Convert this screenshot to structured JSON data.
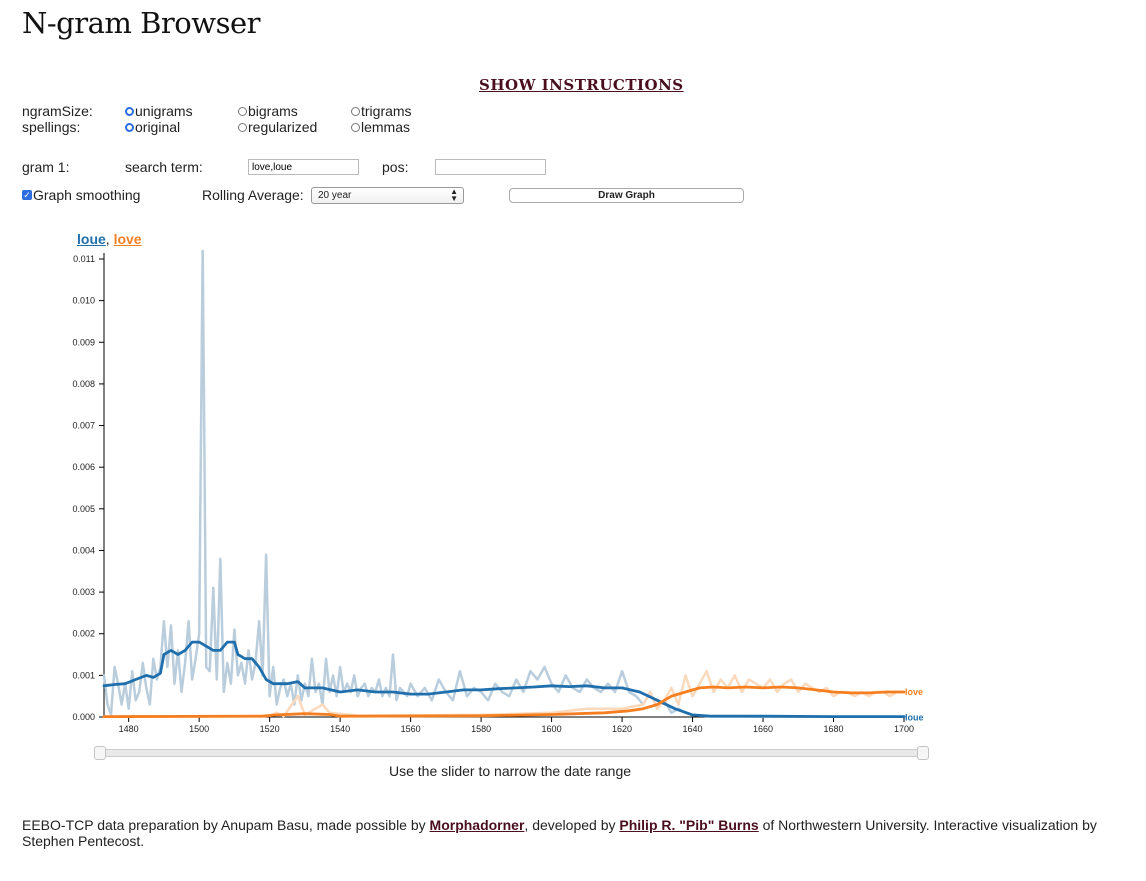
{
  "page": {
    "title": "N-gram Browser",
    "show_instructions": "SHOW INSTRUCTIONS"
  },
  "form": {
    "ngram_label": "ngramSize:",
    "spellings_label": "spellings:",
    "ngram_options": [
      "unigrams",
      "bigrams",
      "trigrams"
    ],
    "ngram_selected": "unigrams",
    "spelling_options": [
      "original",
      "regularized",
      "lemmas"
    ],
    "spelling_selected": "original",
    "gram_label": "gram 1:",
    "search_label": "search term:",
    "search_value": "love,loue",
    "pos_label": "pos:",
    "pos_value": "",
    "smoothing_label": "Graph smoothing",
    "smoothing_checked": true,
    "rolling_label": "Rolling Average:",
    "rolling_value": "20 year",
    "draw_button": "Draw Graph"
  },
  "legend": {
    "loue": "loue",
    "sep": ",",
    "love": "love"
  },
  "slider": {
    "note": "Use the slider to narrow the date range"
  },
  "footer": {
    "t1": "EEBO-TCP data preparation by Anupam Basu, made possible by ",
    "link1": "Morphadorner",
    "t2": ", developed by ",
    "link2": "Philip R. \"Pib\" Burns",
    "t3": " of Northwestern University. Interactive visualization by Stephen Pentecost."
  },
  "colors": {
    "loue": "#1f6fad",
    "love": "#f57f20",
    "loue_raw": "#b9cddc",
    "love_raw": "#fbd9bc",
    "link": "#4a0f1f"
  },
  "chart_data": {
    "type": "line",
    "xlim": [
      1473,
      1700
    ],
    "ylim": [
      0,
      0.011
    ],
    "x_ticks": [
      1480,
      1500,
      1520,
      1540,
      1560,
      1580,
      1600,
      1620,
      1640,
      1660,
      1680,
      1700
    ],
    "y_ticks": [
      "0.000",
      "0.001",
      "0.002",
      "0.003",
      "0.004",
      "0.005",
      "0.006",
      "0.007",
      "0.008",
      "0.009",
      "0.010",
      "0.011"
    ],
    "series": [
      {
        "name": "loue",
        "kind": "raw",
        "points": [
          [
            1473,
            0.001
          ],
          [
            1474,
            0.0003
          ],
          [
            1475,
            5e-05
          ],
          [
            1476,
            0.0012
          ],
          [
            1477,
            0.0008
          ],
          [
            1478,
            0.0003
          ],
          [
            1479,
            0.0008
          ],
          [
            1480,
            0.0002
          ],
          [
            1481,
            0.0011
          ],
          [
            1482,
            0.0004
          ],
          [
            1483,
            0.0006
          ],
          [
            1484,
            0.0013
          ],
          [
            1485,
            0.0007
          ],
          [
            1486,
            0.0003
          ],
          [
            1487,
            0.0014
          ],
          [
            1488,
            0.0009
          ],
          [
            1489,
            0.0012
          ],
          [
            1490,
            0.0023
          ],
          [
            1491,
            0.0012
          ],
          [
            1492,
            0.0022
          ],
          [
            1493,
            0.0008
          ],
          [
            1494,
            0.0016
          ],
          [
            1495,
            0.0006
          ],
          [
            1496,
            0.0013
          ],
          [
            1497,
            0.0023
          ],
          [
            1498,
            0.0009
          ],
          [
            1499,
            0.0014
          ],
          [
            1500,
            0.002
          ],
          [
            1501,
            0.0113
          ],
          [
            1502,
            0.0012
          ],
          [
            1503,
            0.0011
          ],
          [
            1504,
            0.0031
          ],
          [
            1505,
            0.0009
          ],
          [
            1506,
            0.0038
          ],
          [
            1507,
            0.0006
          ],
          [
            1508,
            0.0013
          ],
          [
            1509,
            0.0008
          ],
          [
            1510,
            0.0021
          ],
          [
            1511,
            0.001
          ],
          [
            1512,
            0.0013
          ],
          [
            1513,
            0.0008
          ],
          [
            1514,
            0.0016
          ],
          [
            1515,
            0.0009
          ],
          [
            1516,
            0.0013
          ],
          [
            1517,
            0.0023
          ],
          [
            1518,
            0.001
          ],
          [
            1519,
            0.0039
          ],
          [
            1520,
            0.0005
          ],
          [
            1521,
            0.0012
          ],
          [
            1522,
            0.0003
          ],
          [
            1523,
            0.0007
          ],
          [
            1524,
            0.0009
          ],
          [
            1525,
            0.0005
          ],
          [
            1526,
            0.0008
          ],
          [
            1527,
            0.0003
          ],
          [
            1528,
            0.001
          ],
          [
            1529,
            0.0004
          ],
          [
            1530,
            0.0008
          ],
          [
            1531,
            0.0005
          ],
          [
            1532,
            0.0014
          ],
          [
            1533,
            0.0006
          ],
          [
            1534,
            0.0008
          ],
          [
            1535,
            0.0003
          ],
          [
            1536,
            0.0014
          ],
          [
            1537,
            0.0006
          ],
          [
            1538,
            0.001
          ],
          [
            1539,
            0.0005
          ],
          [
            1540,
            0.0012
          ],
          [
            1541,
            0.0006
          ],
          [
            1542,
            0.0008
          ],
          [
            1543,
            0.0006
          ],
          [
            1544,
            0.001
          ],
          [
            1545,
            0.0005
          ],
          [
            1546,
            0.0007
          ],
          [
            1547,
            0.0008
          ],
          [
            1548,
            0.0005
          ],
          [
            1549,
            0.0007
          ],
          [
            1550,
            0.0006
          ],
          [
            1551,
            0.0009
          ],
          [
            1552,
            0.0005
          ],
          [
            1553,
            0.0007
          ],
          [
            1554,
            0.0005
          ],
          [
            1555,
            0.0015
          ],
          [
            1556,
            0.0004
          ],
          [
            1557,
            0.0007
          ],
          [
            1558,
            0.0006
          ],
          [
            1559,
            0.0005
          ],
          [
            1560,
            0.0008
          ],
          [
            1562,
            0.0005
          ],
          [
            1564,
            0.0007
          ],
          [
            1566,
            0.0004
          ],
          [
            1568,
            0.0009
          ],
          [
            1570,
            0.0006
          ],
          [
            1572,
            0.0004
          ],
          [
            1574,
            0.0011
          ],
          [
            1576,
            0.0005
          ],
          [
            1578,
            0.0007
          ],
          [
            1580,
            0.0006
          ],
          [
            1582,
            0.0004
          ],
          [
            1584,
            0.0008
          ],
          [
            1586,
            0.0006
          ],
          [
            1588,
            0.0005
          ],
          [
            1590,
            0.0009
          ],
          [
            1592,
            0.0006
          ],
          [
            1594,
            0.0011
          ],
          [
            1596,
            0.0009
          ],
          [
            1598,
            0.0012
          ],
          [
            1600,
            0.0008
          ],
          [
            1602,
            0.0006
          ],
          [
            1604,
            0.001
          ],
          [
            1606,
            0.0007
          ],
          [
            1608,
            0.0006
          ],
          [
            1610,
            0.0009
          ],
          [
            1612,
            0.0007
          ],
          [
            1614,
            0.0006
          ],
          [
            1616,
            0.0008
          ],
          [
            1618,
            0.0006
          ],
          [
            1620,
            0.0011
          ],
          [
            1622,
            0.0006
          ],
          [
            1624,
            0.0005
          ],
          [
            1626,
            0.0003
          ],
          [
            1628,
            0.0006
          ],
          [
            1630,
            0.0002
          ],
          [
            1632,
            0.0004
          ],
          [
            1634,
            0.0001
          ],
          [
            1636,
            0.0002
          ],
          [
            1638,
            0.0001
          ],
          [
            1640,
            5e-05
          ],
          [
            1645,
            2e-05
          ],
          [
            1660,
            1e-05
          ],
          [
            1700,
            1e-05
          ]
        ]
      },
      {
        "name": "love",
        "kind": "raw",
        "points": [
          [
            1473,
            1e-05
          ],
          [
            1520,
            3e-05
          ],
          [
            1522,
            0.0001
          ],
          [
            1524,
            2e-05
          ],
          [
            1528,
            0.0005
          ],
          [
            1530,
            5e-05
          ],
          [
            1535,
            0.0003
          ],
          [
            1537,
            0.0001
          ],
          [
            1545,
            3e-05
          ],
          [
            1580,
            5e-05
          ],
          [
            1600,
            0.0001
          ],
          [
            1610,
            0.0002
          ],
          [
            1620,
            0.0002
          ],
          [
            1626,
            0.0003
          ],
          [
            1628,
            0.0006
          ],
          [
            1630,
            0.0002
          ],
          [
            1632,
            0.0004
          ],
          [
            1634,
            0.0007
          ],
          [
            1636,
            0.0003
          ],
          [
            1638,
            0.001
          ],
          [
            1640,
            0.0005
          ],
          [
            1642,
            0.0008
          ],
          [
            1644,
            0.0011
          ],
          [
            1646,
            0.0006
          ],
          [
            1648,
            0.0009
          ],
          [
            1650,
            0.0007
          ],
          [
            1652,
            0.001
          ],
          [
            1654,
            0.0006
          ],
          [
            1656,
            0.0009
          ],
          [
            1658,
            0.0008
          ],
          [
            1660,
            0.0007
          ],
          [
            1662,
            0.0009
          ],
          [
            1664,
            0.0006
          ],
          [
            1666,
            0.0008
          ],
          [
            1668,
            0.0009
          ],
          [
            1670,
            0.0006
          ],
          [
            1672,
            0.0008
          ],
          [
            1674,
            0.0007
          ],
          [
            1676,
            0.0006
          ],
          [
            1678,
            0.0007
          ],
          [
            1680,
            0.0005
          ],
          [
            1682,
            0.0006
          ],
          [
            1684,
            0.0006
          ],
          [
            1686,
            0.0005
          ],
          [
            1688,
            0.0006
          ],
          [
            1690,
            0.0005
          ],
          [
            1692,
            0.0006
          ],
          [
            1694,
            0.0006
          ],
          [
            1696,
            0.0005
          ],
          [
            1698,
            0.0006
          ],
          [
            1700,
            0.0006
          ]
        ]
      },
      {
        "name": "loue",
        "kind": "smoothed",
        "points": [
          [
            1473,
            0.00075
          ],
          [
            1476,
            0.00078
          ],
          [
            1479,
            0.0008
          ],
          [
            1482,
            0.0009
          ],
          [
            1485,
            0.001
          ],
          [
            1487,
            0.00095
          ],
          [
            1489,
            0.00105
          ],
          [
            1490,
            0.0015
          ],
          [
            1492,
            0.0016
          ],
          [
            1494,
            0.0015
          ],
          [
            1496,
            0.0016
          ],
          [
            1498,
            0.0018
          ],
          [
            1500,
            0.0018
          ],
          [
            1502,
            0.0017
          ],
          [
            1504,
            0.0016
          ],
          [
            1506,
            0.0016
          ],
          [
            1508,
            0.0018
          ],
          [
            1510,
            0.0018
          ],
          [
            1511,
            0.0015
          ],
          [
            1513,
            0.0014
          ],
          [
            1515,
            0.0014
          ],
          [
            1517,
            0.0012
          ],
          [
            1519,
            0.0009
          ],
          [
            1521,
            0.0008
          ],
          [
            1525,
            0.0008
          ],
          [
            1528,
            0.00085
          ],
          [
            1530,
            0.0007
          ],
          [
            1535,
            0.0007
          ],
          [
            1540,
            0.0006
          ],
          [
            1545,
            0.00065
          ],
          [
            1550,
            0.0006
          ],
          [
            1555,
            0.0006
          ],
          [
            1560,
            0.00055
          ],
          [
            1565,
            0.00055
          ],
          [
            1570,
            0.0006
          ],
          [
            1575,
            0.00065
          ],
          [
            1580,
            0.00065
          ],
          [
            1585,
            0.00068
          ],
          [
            1590,
            0.0007
          ],
          [
            1595,
            0.00072
          ],
          [
            1600,
            0.00075
          ],
          [
            1605,
            0.00073
          ],
          [
            1610,
            0.00075
          ],
          [
            1615,
            0.0007
          ],
          [
            1620,
            0.0007
          ],
          [
            1625,
            0.0006
          ],
          [
            1630,
            0.0004
          ],
          [
            1635,
            0.0002
          ],
          [
            1640,
            5e-05
          ],
          [
            1645,
            2e-05
          ],
          [
            1660,
            2e-05
          ],
          [
            1680,
            1e-05
          ],
          [
            1700,
            1e-05
          ]
        ]
      },
      {
        "name": "love",
        "kind": "smoothed",
        "points": [
          [
            1473,
            1e-05
          ],
          [
            1518,
            2e-05
          ],
          [
            1522,
            5e-05
          ],
          [
            1530,
            8e-05
          ],
          [
            1537,
            6e-05
          ],
          [
            1540,
            2e-05
          ],
          [
            1580,
            3e-05
          ],
          [
            1600,
            6e-05
          ],
          [
            1615,
            0.0001
          ],
          [
            1622,
            0.00015
          ],
          [
            1626,
            0.0002
          ],
          [
            1630,
            0.0003
          ],
          [
            1634,
            0.0005
          ],
          [
            1638,
            0.0006
          ],
          [
            1642,
            0.0007
          ],
          [
            1646,
            0.00072
          ],
          [
            1650,
            0.0007
          ],
          [
            1655,
            0.00072
          ],
          [
            1660,
            0.0007
          ],
          [
            1665,
            0.00072
          ],
          [
            1670,
            0.0007
          ],
          [
            1675,
            0.00065
          ],
          [
            1680,
            0.0006
          ],
          [
            1685,
            0.00058
          ],
          [
            1690,
            0.00058
          ],
          [
            1695,
            0.0006
          ],
          [
            1700,
            0.0006
          ]
        ]
      }
    ],
    "end_labels": [
      "love",
      "loue"
    ]
  }
}
